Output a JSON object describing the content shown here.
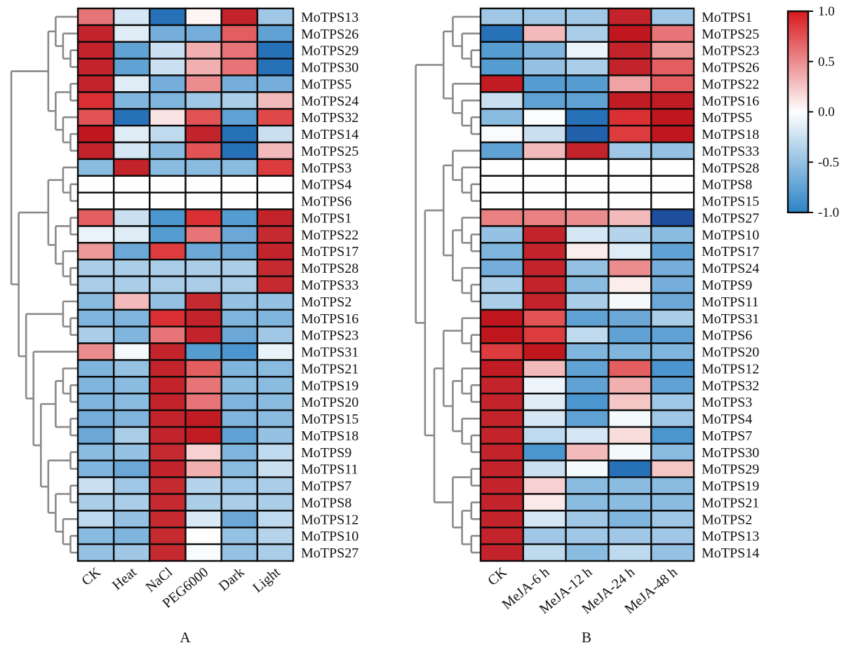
{
  "chart_data": [
    {
      "type": "heatmap",
      "panel": "A",
      "title": "",
      "xlabel": "",
      "ylabel": "",
      "columns": [
        "CK",
        "Heat",
        "NaCl",
        "PEG6000",
        "Dark",
        "Light"
      ],
      "rows": [
        "MoTPS13",
        "MoTPS26",
        "MoTPS29",
        "MoTPS30",
        "MoTPS5",
        "MoTPS24",
        "MoTPS32",
        "MoTPS14",
        "MoTPS25",
        "MoTPS3",
        "MoTPS4",
        "MoTPS6",
        "MoTPS1",
        "MoTPS22",
        "MoTPS17",
        "MoTPS28",
        "MoTPS33",
        "MoTPS2",
        "MoTPS16",
        "MoTPS23",
        "MoTPS31",
        "MoTPS21",
        "MoTPS19",
        "MoTPS20",
        "MoTPS15",
        "MoTPS18",
        "MoTPS9",
        "MoTPS11",
        "MoTPS7",
        "MoTPS8",
        "MoTPS12",
        "MoTPS10",
        "MoTPS27"
      ],
      "values": [
        [
          0.6,
          -0.2,
          -0.9,
          0.05,
          0.95,
          -0.45
        ],
        [
          0.95,
          -0.15,
          -0.65,
          -0.65,
          0.7,
          -0.75
        ],
        [
          0.95,
          -0.75,
          -0.25,
          0.35,
          0.6,
          -0.9
        ],
        [
          0.95,
          -0.75,
          -0.25,
          0.35,
          0.6,
          -0.9
        ],
        [
          0.95,
          -0.15,
          -0.65,
          0.5,
          -0.65,
          -0.65
        ],
        [
          0.9,
          -0.6,
          -0.6,
          -0.45,
          -0.4,
          0.3
        ],
        [
          0.75,
          -0.9,
          0.12,
          0.75,
          -0.75,
          0.8
        ],
        [
          1.0,
          -0.15,
          -0.3,
          0.95,
          -0.9,
          -0.25
        ],
        [
          0.95,
          -0.2,
          -0.55,
          0.75,
          -0.9,
          0.3
        ],
        [
          -0.55,
          0.95,
          -0.55,
          -0.55,
          -0.55,
          0.85
        ],
        [
          0,
          0,
          0,
          0,
          0,
          0
        ],
        [
          0,
          0,
          0,
          0,
          0,
          0
        ],
        [
          0.7,
          -0.25,
          -0.85,
          0.9,
          -0.8,
          0.95
        ],
        [
          -0.1,
          -0.15,
          -0.8,
          0.6,
          -0.7,
          0.92
        ],
        [
          0.45,
          -0.7,
          0.85,
          -0.7,
          -0.7,
          0.95
        ],
        [
          -0.4,
          -0.4,
          -0.4,
          -0.4,
          -0.4,
          0.92
        ],
        [
          -0.4,
          -0.4,
          -0.4,
          -0.4,
          -0.4,
          0.92
        ],
        [
          -0.55,
          0.3,
          -0.5,
          0.92,
          -0.5,
          -0.5
        ],
        [
          -0.6,
          -0.6,
          0.9,
          0.95,
          -0.6,
          -0.6
        ],
        [
          -0.4,
          -0.6,
          0.6,
          0.95,
          -0.7,
          -0.45
        ],
        [
          0.5,
          -0.05,
          0.95,
          -0.8,
          -0.85,
          -0.1
        ],
        [
          -0.6,
          -0.5,
          0.95,
          0.7,
          -0.6,
          -0.55
        ],
        [
          -0.6,
          -0.55,
          0.95,
          0.6,
          -0.55,
          -0.55
        ],
        [
          -0.6,
          -0.55,
          0.95,
          0.6,
          -0.6,
          -0.55
        ],
        [
          -0.65,
          -0.6,
          0.95,
          0.98,
          -0.6,
          -0.55
        ],
        [
          -0.7,
          -0.4,
          0.95,
          0.98,
          -0.75,
          -0.5
        ],
        [
          -0.55,
          -0.5,
          0.92,
          0.2,
          -0.6,
          -0.3
        ],
        [
          -0.6,
          -0.7,
          0.95,
          0.35,
          -0.55,
          -0.25
        ],
        [
          -0.25,
          -0.45,
          0.92,
          -0.35,
          -0.45,
          -0.4
        ],
        [
          -0.4,
          -0.4,
          0.92,
          -0.4,
          -0.4,
          -0.4
        ],
        [
          -0.3,
          -0.5,
          0.92,
          -0.18,
          -0.7,
          -0.3
        ],
        [
          -0.55,
          -0.6,
          0.92,
          0.0,
          -0.5,
          -0.35
        ],
        [
          -0.5,
          -0.45,
          0.92,
          -0.03,
          -0.5,
          -0.4
        ]
      ],
      "panel_label": "A"
    },
    {
      "type": "heatmap",
      "panel": "B",
      "title": "",
      "xlabel": "",
      "ylabel": "",
      "columns": [
        "CK",
        "MeJA-6 h",
        "MeJA-12 h",
        "MeJA-24 h",
        "MeJA-48 h"
      ],
      "rows": [
        "MoTPS1",
        "MoTPS25",
        "MoTPS23",
        "MoTPS26",
        "MoTPS22",
        "MoTPS16",
        "MoTPS5",
        "MoTPS18",
        "MoTPS33",
        "MoTPS28",
        "MoTPS8",
        "MoTPS15",
        "MoTPS27",
        "MoTPS10",
        "MoTPS17",
        "MoTPS24",
        "MoTPS9",
        "MoTPS11",
        "MoTPS31",
        "MoTPS6",
        "MoTPS20",
        "MoTPS12",
        "MoTPS32",
        "MoTPS3",
        "MoTPS4",
        "MoTPS7",
        "MoTPS30",
        "MoTPS29",
        "MoTPS19",
        "MoTPS21",
        "MoTPS2",
        "MoTPS13",
        "MoTPS14"
      ],
      "values": [
        [
          -0.45,
          -0.45,
          -0.45,
          0.95,
          -0.45
        ],
        [
          -0.9,
          0.3,
          -0.4,
          1.0,
          0.6
        ],
        [
          -0.8,
          -0.6,
          -0.1,
          0.95,
          0.45
        ],
        [
          -0.8,
          -0.5,
          -0.4,
          0.95,
          0.7
        ],
        [
          0.98,
          -0.8,
          -0.8,
          0.4,
          0.7
        ],
        [
          -0.25,
          -0.75,
          -0.75,
          0.98,
          0.98
        ],
        [
          -0.55,
          -0.02,
          -0.9,
          0.9,
          1.0
        ],
        [
          -0.03,
          -0.25,
          -0.95,
          0.85,
          1.0
        ],
        [
          -0.75,
          0.3,
          0.95,
          -0.45,
          -0.5
        ],
        [
          0,
          0,
          0,
          0,
          0
        ],
        [
          0,
          0,
          0,
          0,
          0
        ],
        [
          0,
          0,
          0,
          0,
          0
        ],
        [
          0.55,
          0.55,
          0.5,
          0.3,
          -1.0
        ],
        [
          -0.5,
          0.95,
          -0.2,
          -0.35,
          -0.55
        ],
        [
          -0.6,
          0.95,
          0.08,
          -0.15,
          -0.75
        ],
        [
          -0.65,
          0.95,
          -0.5,
          0.5,
          -0.65
        ],
        [
          -0.4,
          0.95,
          -0.55,
          0.08,
          -0.65
        ],
        [
          -0.4,
          0.95,
          -0.4,
          -0.05,
          -0.7
        ],
        [
          1.0,
          0.75,
          -0.75,
          -0.7,
          -0.4
        ],
        [
          1.0,
          0.85,
          -0.3,
          -0.75,
          -0.75
        ],
        [
          0.85,
          1.0,
          -0.6,
          -0.6,
          -0.6
        ],
        [
          0.98,
          0.3,
          -0.75,
          0.7,
          -0.85
        ],
        [
          0.95,
          -0.08,
          -0.75,
          0.35,
          -0.75
        ],
        [
          0.95,
          -0.15,
          -0.85,
          0.25,
          -0.45
        ],
        [
          0.95,
          -0.2,
          -0.75,
          -0.05,
          -0.45
        ],
        [
          0.95,
          -0.3,
          -0.2,
          0.15,
          -0.85
        ],
        [
          0.95,
          -0.85,
          0.3,
          -0.05,
          -0.55
        ],
        [
          0.95,
          -0.25,
          -0.05,
          -0.9,
          0.25
        ],
        [
          0.95,
          0.2,
          -0.55,
          -0.55,
          -0.55
        ],
        [
          0.95,
          0.1,
          -0.55,
          -0.55,
          -0.55
        ],
        [
          0.95,
          -0.2,
          -0.45,
          -0.6,
          -0.45
        ],
        [
          0.95,
          -0.45,
          -0.45,
          -0.45,
          -0.45
        ],
        [
          0.95,
          -0.3,
          -0.55,
          -0.3,
          -0.5
        ]
      ],
      "panel_label": "B"
    }
  ],
  "colorbar": {
    "range": [
      -1.0,
      1.0
    ],
    "ticks": [
      1.0,
      0.5,
      0.0,
      -0.5,
      -1.0
    ],
    "tick_labels": [
      "1.0",
      "0.5",
      "0.0",
      "-0.5",
      "-1.0"
    ],
    "colors": {
      "high": "#d7191c",
      "mid": "#ffffff",
      "low": "#2b83c6"
    }
  }
}
